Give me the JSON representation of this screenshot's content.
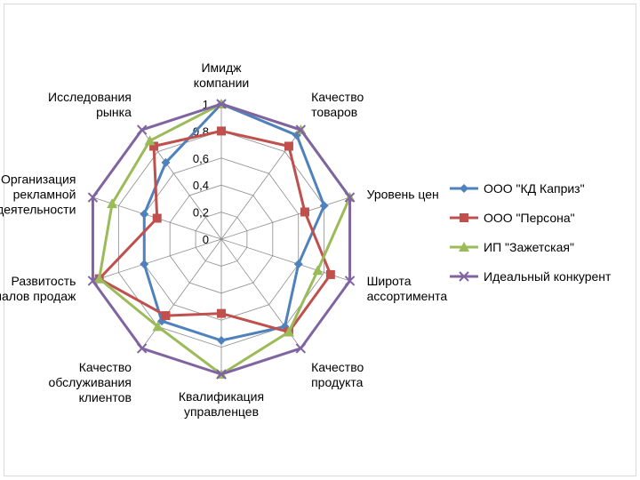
{
  "chart_data": {
    "type": "radar",
    "categories": [
      [
        "Имидж",
        "компании"
      ],
      [
        "Качество",
        "товаров"
      ],
      [
        "Уровень цен"
      ],
      [
        "Широта",
        "ассортимента"
      ],
      [
        "Качество",
        "продукта"
      ],
      [
        "Квалификация",
        "управленцев"
      ],
      [
        "Качество",
        "обслуживания",
        "клиентов"
      ],
      [
        "Развитость",
        "каналов продаж"
      ],
      [
        "Организация",
        "рекламной",
        "деятельности"
      ],
      [
        "Исследования",
        "рынка"
      ]
    ],
    "ylim": [
      0,
      1
    ],
    "ticks": [
      "0",
      "0,2",
      "0,4",
      "0,6",
      "0,8",
      "1"
    ],
    "grid": true,
    "legend_position": "right",
    "series": [
      {
        "name": "ООО \"КД Каприз\"",
        "color": "#4f81bd",
        "marker": "diamond",
        "values": [
          1.0,
          0.95,
          0.8,
          0.6,
          0.8,
          0.75,
          0.75,
          0.6,
          0.6,
          0.7
        ]
      },
      {
        "name": "ООО \"Персона\"",
        "color": "#c0504d",
        "marker": "square",
        "values": [
          0.8,
          0.85,
          0.65,
          0.85,
          0.85,
          0.55,
          0.7,
          0.95,
          0.5,
          0.85
        ]
      },
      {
        "name": "ИП \"Зажетская\"",
        "color": "#9bbb59",
        "marker": "triangle",
        "values": [
          1.0,
          1.0,
          1.0,
          0.75,
          0.85,
          1.0,
          0.8,
          0.95,
          0.85,
          0.9
        ]
      },
      {
        "name": "Идеальный конкурент",
        "color": "#8064a2",
        "marker": "x",
        "values": [
          1.0,
          1.0,
          1.0,
          1.0,
          1.0,
          1.0,
          1.0,
          1.0,
          1.0,
          1.0
        ]
      }
    ]
  }
}
